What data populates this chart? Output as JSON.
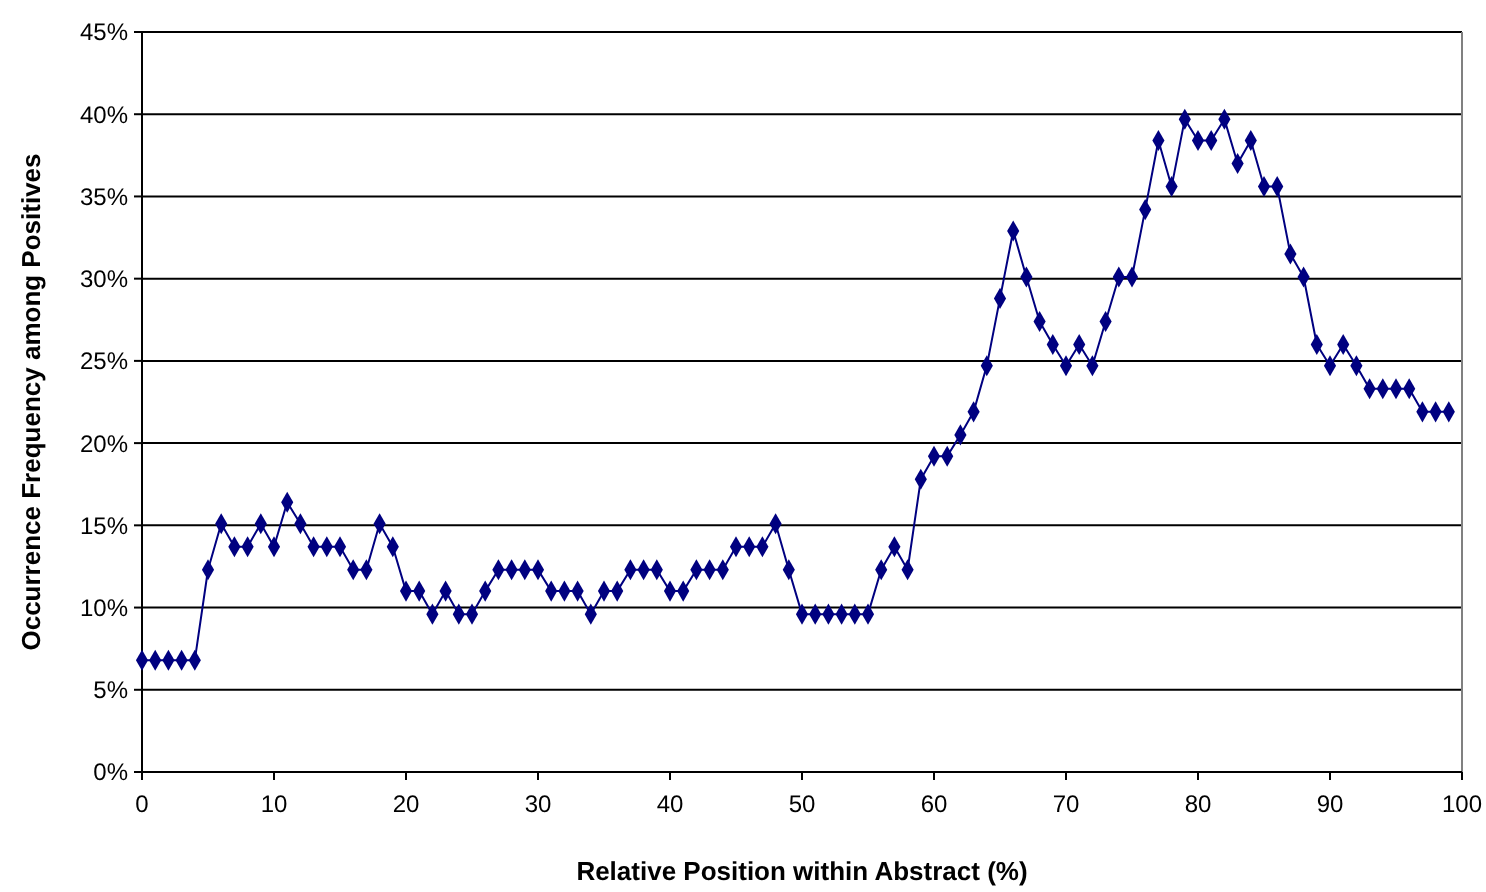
{
  "chart_data": {
    "type": "line",
    "xlabel": "Relative Position within Abstract (%)",
    "ylabel": "Occurrence Frequency among Positives",
    "x": [
      0,
      1,
      2,
      3,
      4,
      5,
      6,
      7,
      8,
      9,
      10,
      11,
      12,
      13,
      14,
      15,
      16,
      17,
      18,
      19,
      20,
      21,
      22,
      23,
      24,
      25,
      26,
      27,
      28,
      29,
      30,
      31,
      32,
      33,
      34,
      35,
      36,
      37,
      38,
      39,
      40,
      41,
      42,
      43,
      44,
      45,
      46,
      47,
      48,
      49,
      50,
      51,
      52,
      53,
      54,
      55,
      56,
      57,
      58,
      59,
      60,
      61,
      62,
      63,
      64,
      65,
      66,
      67,
      68,
      69,
      70,
      71,
      72,
      73,
      74,
      75,
      76,
      77,
      78,
      79,
      80,
      81,
      82,
      83,
      84,
      85,
      86,
      87,
      88,
      89,
      90,
      91,
      92,
      93,
      94,
      95,
      96,
      97,
      98,
      99
    ],
    "series": [
      {
        "color": "#000080",
        "values": [
          6.8,
          6.8,
          6.8,
          6.8,
          6.8,
          12.3,
          15.1,
          13.7,
          13.7,
          15.1,
          13.7,
          16.4,
          15.1,
          13.7,
          13.7,
          13.7,
          12.3,
          12.3,
          15.1,
          13.7,
          11.0,
          11.0,
          9.6,
          11.0,
          9.6,
          9.6,
          11.0,
          12.3,
          12.3,
          12.3,
          12.3,
          11.0,
          11.0,
          11.0,
          9.6,
          11.0,
          11.0,
          12.3,
          12.3,
          12.3,
          11.0,
          11.0,
          12.3,
          12.3,
          12.3,
          13.7,
          13.7,
          13.7,
          15.1,
          12.3,
          9.6,
          9.6,
          9.6,
          9.6,
          9.6,
          9.6,
          12.3,
          13.7,
          12.3,
          17.8,
          19.2,
          19.2,
          20.5,
          21.9,
          24.7,
          28.8,
          32.9,
          30.1,
          27.4,
          26.0,
          24.7,
          26.0,
          24.7,
          27.4,
          30.1,
          30.1,
          34.2,
          38.4,
          35.6,
          39.7,
          38.4,
          38.4,
          39.7,
          37.0,
          38.4,
          35.6,
          35.6,
          31.5,
          30.1,
          26.0,
          24.7,
          26.0,
          24.7,
          23.3,
          23.3,
          23.3,
          23.3,
          21.9,
          21.9,
          21.9
        ]
      }
    ],
    "xlim": [
      0,
      100
    ],
    "xticks": [
      0,
      10,
      20,
      30,
      40,
      50,
      60,
      70,
      80,
      90,
      100
    ],
    "ylim": [
      0,
      45
    ],
    "yticks": [
      {
        "value": 0,
        "label": "0%"
      },
      {
        "value": 5,
        "label": "5%"
      },
      {
        "value": 10,
        "label": "10%"
      },
      {
        "value": 15,
        "label": "15%"
      },
      {
        "value": 20,
        "label": "20%"
      },
      {
        "value": 25,
        "label": "25%"
      },
      {
        "value": 30,
        "label": "30%"
      },
      {
        "value": 35,
        "label": "35%"
      },
      {
        "value": 40,
        "label": "40%"
      },
      {
        "value": 45,
        "label": "45%"
      }
    ],
    "grid": "y",
    "marker": "diamond",
    "line_style": "solid"
  }
}
